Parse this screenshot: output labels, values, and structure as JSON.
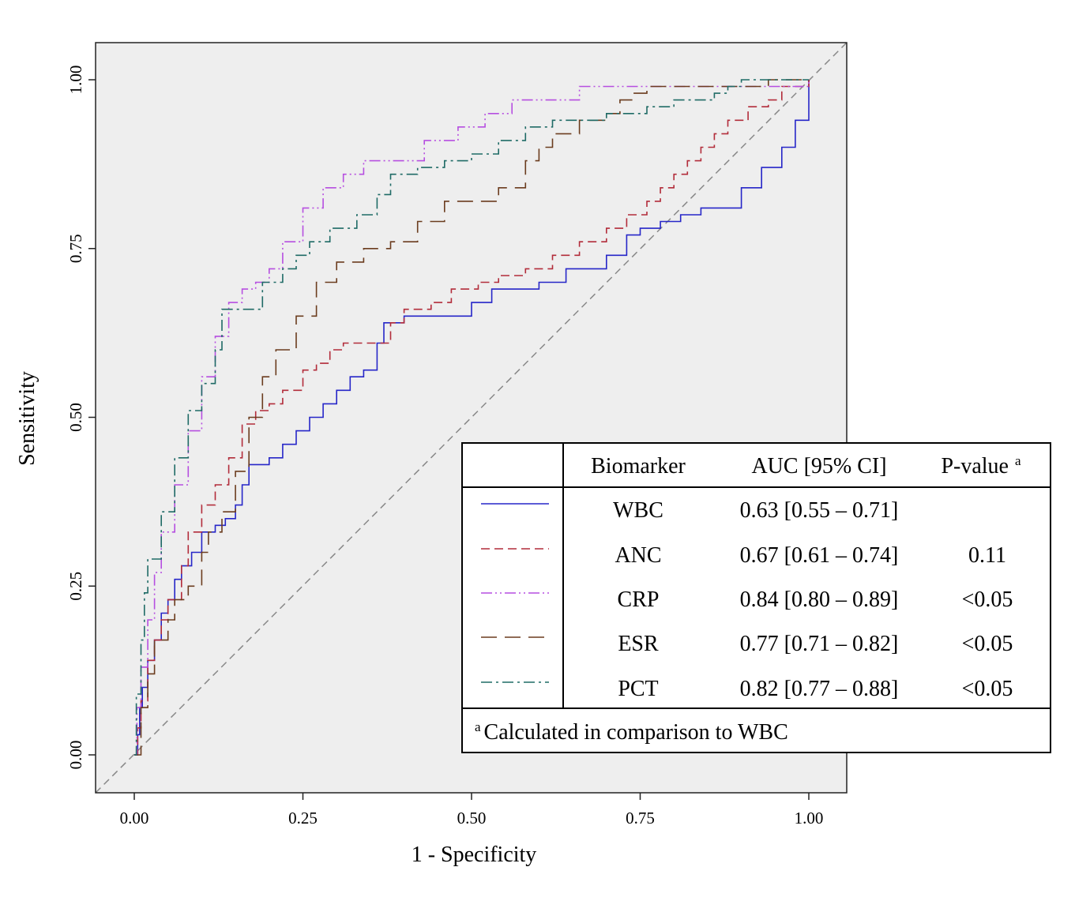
{
  "chart_data": {
    "type": "line",
    "title": "",
    "xlabel": "1 - Specificity",
    "ylabel": "Sensitivity",
    "xlim": [
      0,
      1
    ],
    "ylim": [
      0,
      1
    ],
    "x_ticks": [
      "0.00",
      "0.25",
      "0.50",
      "0.75",
      "1.00"
    ],
    "y_ticks": [
      "0.00",
      "0.25",
      "0.50",
      "0.75",
      "1.00"
    ],
    "background": "#eeeeee",
    "reference_line": "diagonal",
    "series": [
      {
        "name": "WBC",
        "color": "#2626c8",
        "dash": "solid",
        "points": [
          [
            0,
            0
          ],
          [
            0.005,
            0.03
          ],
          [
            0.008,
            0.07
          ],
          [
            0.012,
            0.1
          ],
          [
            0.02,
            0.14
          ],
          [
            0.03,
            0.17
          ],
          [
            0.04,
            0.21
          ],
          [
            0.05,
            0.23
          ],
          [
            0.06,
            0.26
          ],
          [
            0.07,
            0.28
          ],
          [
            0.085,
            0.3
          ],
          [
            0.1,
            0.33
          ],
          [
            0.12,
            0.34
          ],
          [
            0.135,
            0.35
          ],
          [
            0.15,
            0.37
          ],
          [
            0.16,
            0.4
          ],
          [
            0.17,
            0.43
          ],
          [
            0.2,
            0.44
          ],
          [
            0.22,
            0.46
          ],
          [
            0.24,
            0.48
          ],
          [
            0.26,
            0.5
          ],
          [
            0.28,
            0.52
          ],
          [
            0.3,
            0.54
          ],
          [
            0.32,
            0.56
          ],
          [
            0.34,
            0.57
          ],
          [
            0.36,
            0.61
          ],
          [
            0.37,
            0.64
          ],
          [
            0.4,
            0.65
          ],
          [
            0.46,
            0.65
          ],
          [
            0.5,
            0.67
          ],
          [
            0.53,
            0.69
          ],
          [
            0.56,
            0.69
          ],
          [
            0.6,
            0.7
          ],
          [
            0.64,
            0.72
          ],
          [
            0.7,
            0.74
          ],
          [
            0.73,
            0.77
          ],
          [
            0.75,
            0.78
          ],
          [
            0.78,
            0.79
          ],
          [
            0.81,
            0.8
          ],
          [
            0.84,
            0.81
          ],
          [
            0.87,
            0.81
          ],
          [
            0.9,
            0.84
          ],
          [
            0.93,
            0.87
          ],
          [
            0.96,
            0.9
          ],
          [
            0.98,
            0.94
          ],
          [
            1,
            1
          ]
        ]
      },
      {
        "name": "ANC",
        "color": "#b22c3a",
        "dash": "long-dash",
        "points": [
          [
            0,
            0
          ],
          [
            0.005,
            0.04
          ],
          [
            0.01,
            0.08
          ],
          [
            0.02,
            0.14
          ],
          [
            0.03,
            0.17
          ],
          [
            0.04,
            0.2
          ],
          [
            0.05,
            0.23
          ],
          [
            0.07,
            0.28
          ],
          [
            0.08,
            0.33
          ],
          [
            0.1,
            0.37
          ],
          [
            0.12,
            0.4
          ],
          [
            0.14,
            0.44
          ],
          [
            0.16,
            0.49
          ],
          [
            0.18,
            0.51
          ],
          [
            0.2,
            0.52
          ],
          [
            0.22,
            0.54
          ],
          [
            0.25,
            0.57
          ],
          [
            0.27,
            0.58
          ],
          [
            0.29,
            0.6
          ],
          [
            0.31,
            0.61
          ],
          [
            0.36,
            0.61
          ],
          [
            0.38,
            0.64
          ],
          [
            0.4,
            0.66
          ],
          [
            0.44,
            0.67
          ],
          [
            0.47,
            0.69
          ],
          [
            0.51,
            0.7
          ],
          [
            0.54,
            0.71
          ],
          [
            0.58,
            0.72
          ],
          [
            0.62,
            0.74
          ],
          [
            0.66,
            0.76
          ],
          [
            0.7,
            0.78
          ],
          [
            0.73,
            0.8
          ],
          [
            0.76,
            0.82
          ],
          [
            0.78,
            0.84
          ],
          [
            0.8,
            0.86
          ],
          [
            0.82,
            0.88
          ],
          [
            0.84,
            0.9
          ],
          [
            0.86,
            0.92
          ],
          [
            0.88,
            0.94
          ],
          [
            0.91,
            0.96
          ],
          [
            0.94,
            0.97
          ],
          [
            0.96,
            0.99
          ],
          [
            1,
            1
          ]
        ]
      },
      {
        "name": "CRP",
        "color": "#b64fe0",
        "dash": "dash-dot-dot",
        "points": [
          [
            0,
            0
          ],
          [
            0.004,
            0.07
          ],
          [
            0.01,
            0.13
          ],
          [
            0.02,
            0.2
          ],
          [
            0.03,
            0.27
          ],
          [
            0.04,
            0.33
          ],
          [
            0.06,
            0.4
          ],
          [
            0.08,
            0.48
          ],
          [
            0.1,
            0.56
          ],
          [
            0.12,
            0.62
          ],
          [
            0.14,
            0.67
          ],
          [
            0.16,
            0.69
          ],
          [
            0.18,
            0.7
          ],
          [
            0.2,
            0.72
          ],
          [
            0.22,
            0.76
          ],
          [
            0.25,
            0.81
          ],
          [
            0.28,
            0.84
          ],
          [
            0.31,
            0.86
          ],
          [
            0.34,
            0.88
          ],
          [
            0.42,
            0.88
          ],
          [
            0.43,
            0.91
          ],
          [
            0.48,
            0.93
          ],
          [
            0.52,
            0.95
          ],
          [
            0.56,
            0.97
          ],
          [
            0.64,
            0.97
          ],
          [
            0.66,
            0.99
          ],
          [
            1,
            1
          ]
        ]
      },
      {
        "name": "ESR",
        "color": "#6b3c1e",
        "dash": "long-dash-wide",
        "points": [
          [
            0,
            0
          ],
          [
            0.01,
            0.07
          ],
          [
            0.02,
            0.12
          ],
          [
            0.03,
            0.17
          ],
          [
            0.05,
            0.2
          ],
          [
            0.06,
            0.23
          ],
          [
            0.08,
            0.25
          ],
          [
            0.1,
            0.3
          ],
          [
            0.11,
            0.33
          ],
          [
            0.13,
            0.36
          ],
          [
            0.15,
            0.42
          ],
          [
            0.17,
            0.5
          ],
          [
            0.19,
            0.56
          ],
          [
            0.21,
            0.6
          ],
          [
            0.24,
            0.65
          ],
          [
            0.27,
            0.7
          ],
          [
            0.3,
            0.73
          ],
          [
            0.34,
            0.75
          ],
          [
            0.38,
            0.76
          ],
          [
            0.42,
            0.79
          ],
          [
            0.46,
            0.82
          ],
          [
            0.5,
            0.82
          ],
          [
            0.54,
            0.84
          ],
          [
            0.58,
            0.88
          ],
          [
            0.6,
            0.9
          ],
          [
            0.62,
            0.92
          ],
          [
            0.66,
            0.94
          ],
          [
            0.7,
            0.95
          ],
          [
            0.72,
            0.97
          ],
          [
            0.74,
            0.98
          ],
          [
            0.76,
            0.99
          ],
          [
            0.92,
            0.99
          ],
          [
            0.94,
            1
          ],
          [
            1,
            1
          ]
        ]
      },
      {
        "name": "PCT",
        "color": "#1f6b66",
        "dash": "dash-dot",
        "points": [
          [
            0,
            0
          ],
          [
            0.003,
            0.09
          ],
          [
            0.01,
            0.17
          ],
          [
            0.015,
            0.24
          ],
          [
            0.02,
            0.29
          ],
          [
            0.04,
            0.36
          ],
          [
            0.06,
            0.44
          ],
          [
            0.08,
            0.51
          ],
          [
            0.1,
            0.55
          ],
          [
            0.12,
            0.6
          ],
          [
            0.13,
            0.66
          ],
          [
            0.17,
            0.66
          ],
          [
            0.19,
            0.7
          ],
          [
            0.22,
            0.72
          ],
          [
            0.24,
            0.74
          ],
          [
            0.26,
            0.76
          ],
          [
            0.29,
            0.78
          ],
          [
            0.33,
            0.8
          ],
          [
            0.36,
            0.83
          ],
          [
            0.38,
            0.86
          ],
          [
            0.42,
            0.87
          ],
          [
            0.46,
            0.88
          ],
          [
            0.5,
            0.89
          ],
          [
            0.54,
            0.91
          ],
          [
            0.58,
            0.93
          ],
          [
            0.62,
            0.94
          ],
          [
            0.7,
            0.95
          ],
          [
            0.76,
            0.96
          ],
          [
            0.8,
            0.97
          ],
          [
            0.86,
            0.98
          ],
          [
            0.88,
            0.99
          ],
          [
            0.9,
            1
          ],
          [
            1,
            1
          ]
        ]
      }
    ]
  },
  "legend_table": {
    "headers": [
      "Biomarker",
      "AUC [95% CI]",
      "P-value"
    ],
    "header_pvalue_sup": "a",
    "rows": [
      {
        "biomarker": "WBC",
        "auc": "0.63 [0.55 – 0.71]",
        "p": ""
      },
      {
        "biomarker": "ANC",
        "auc": "0.67 [0.61 – 0.74]",
        "p": "0.11"
      },
      {
        "biomarker": "CRP",
        "auc": "0.84 [0.80 – 0.89]",
        "p": "<0.05"
      },
      {
        "biomarker": "ESR",
        "auc": "0.77 [0.71 – 0.82]",
        "p": "<0.05"
      },
      {
        "biomarker": "PCT",
        "auc": "0.82 [0.77 – 0.88]",
        "p": "<0.05"
      }
    ],
    "footnote_sup": "a",
    "footnote": "Calculated in comparison to WBC"
  }
}
